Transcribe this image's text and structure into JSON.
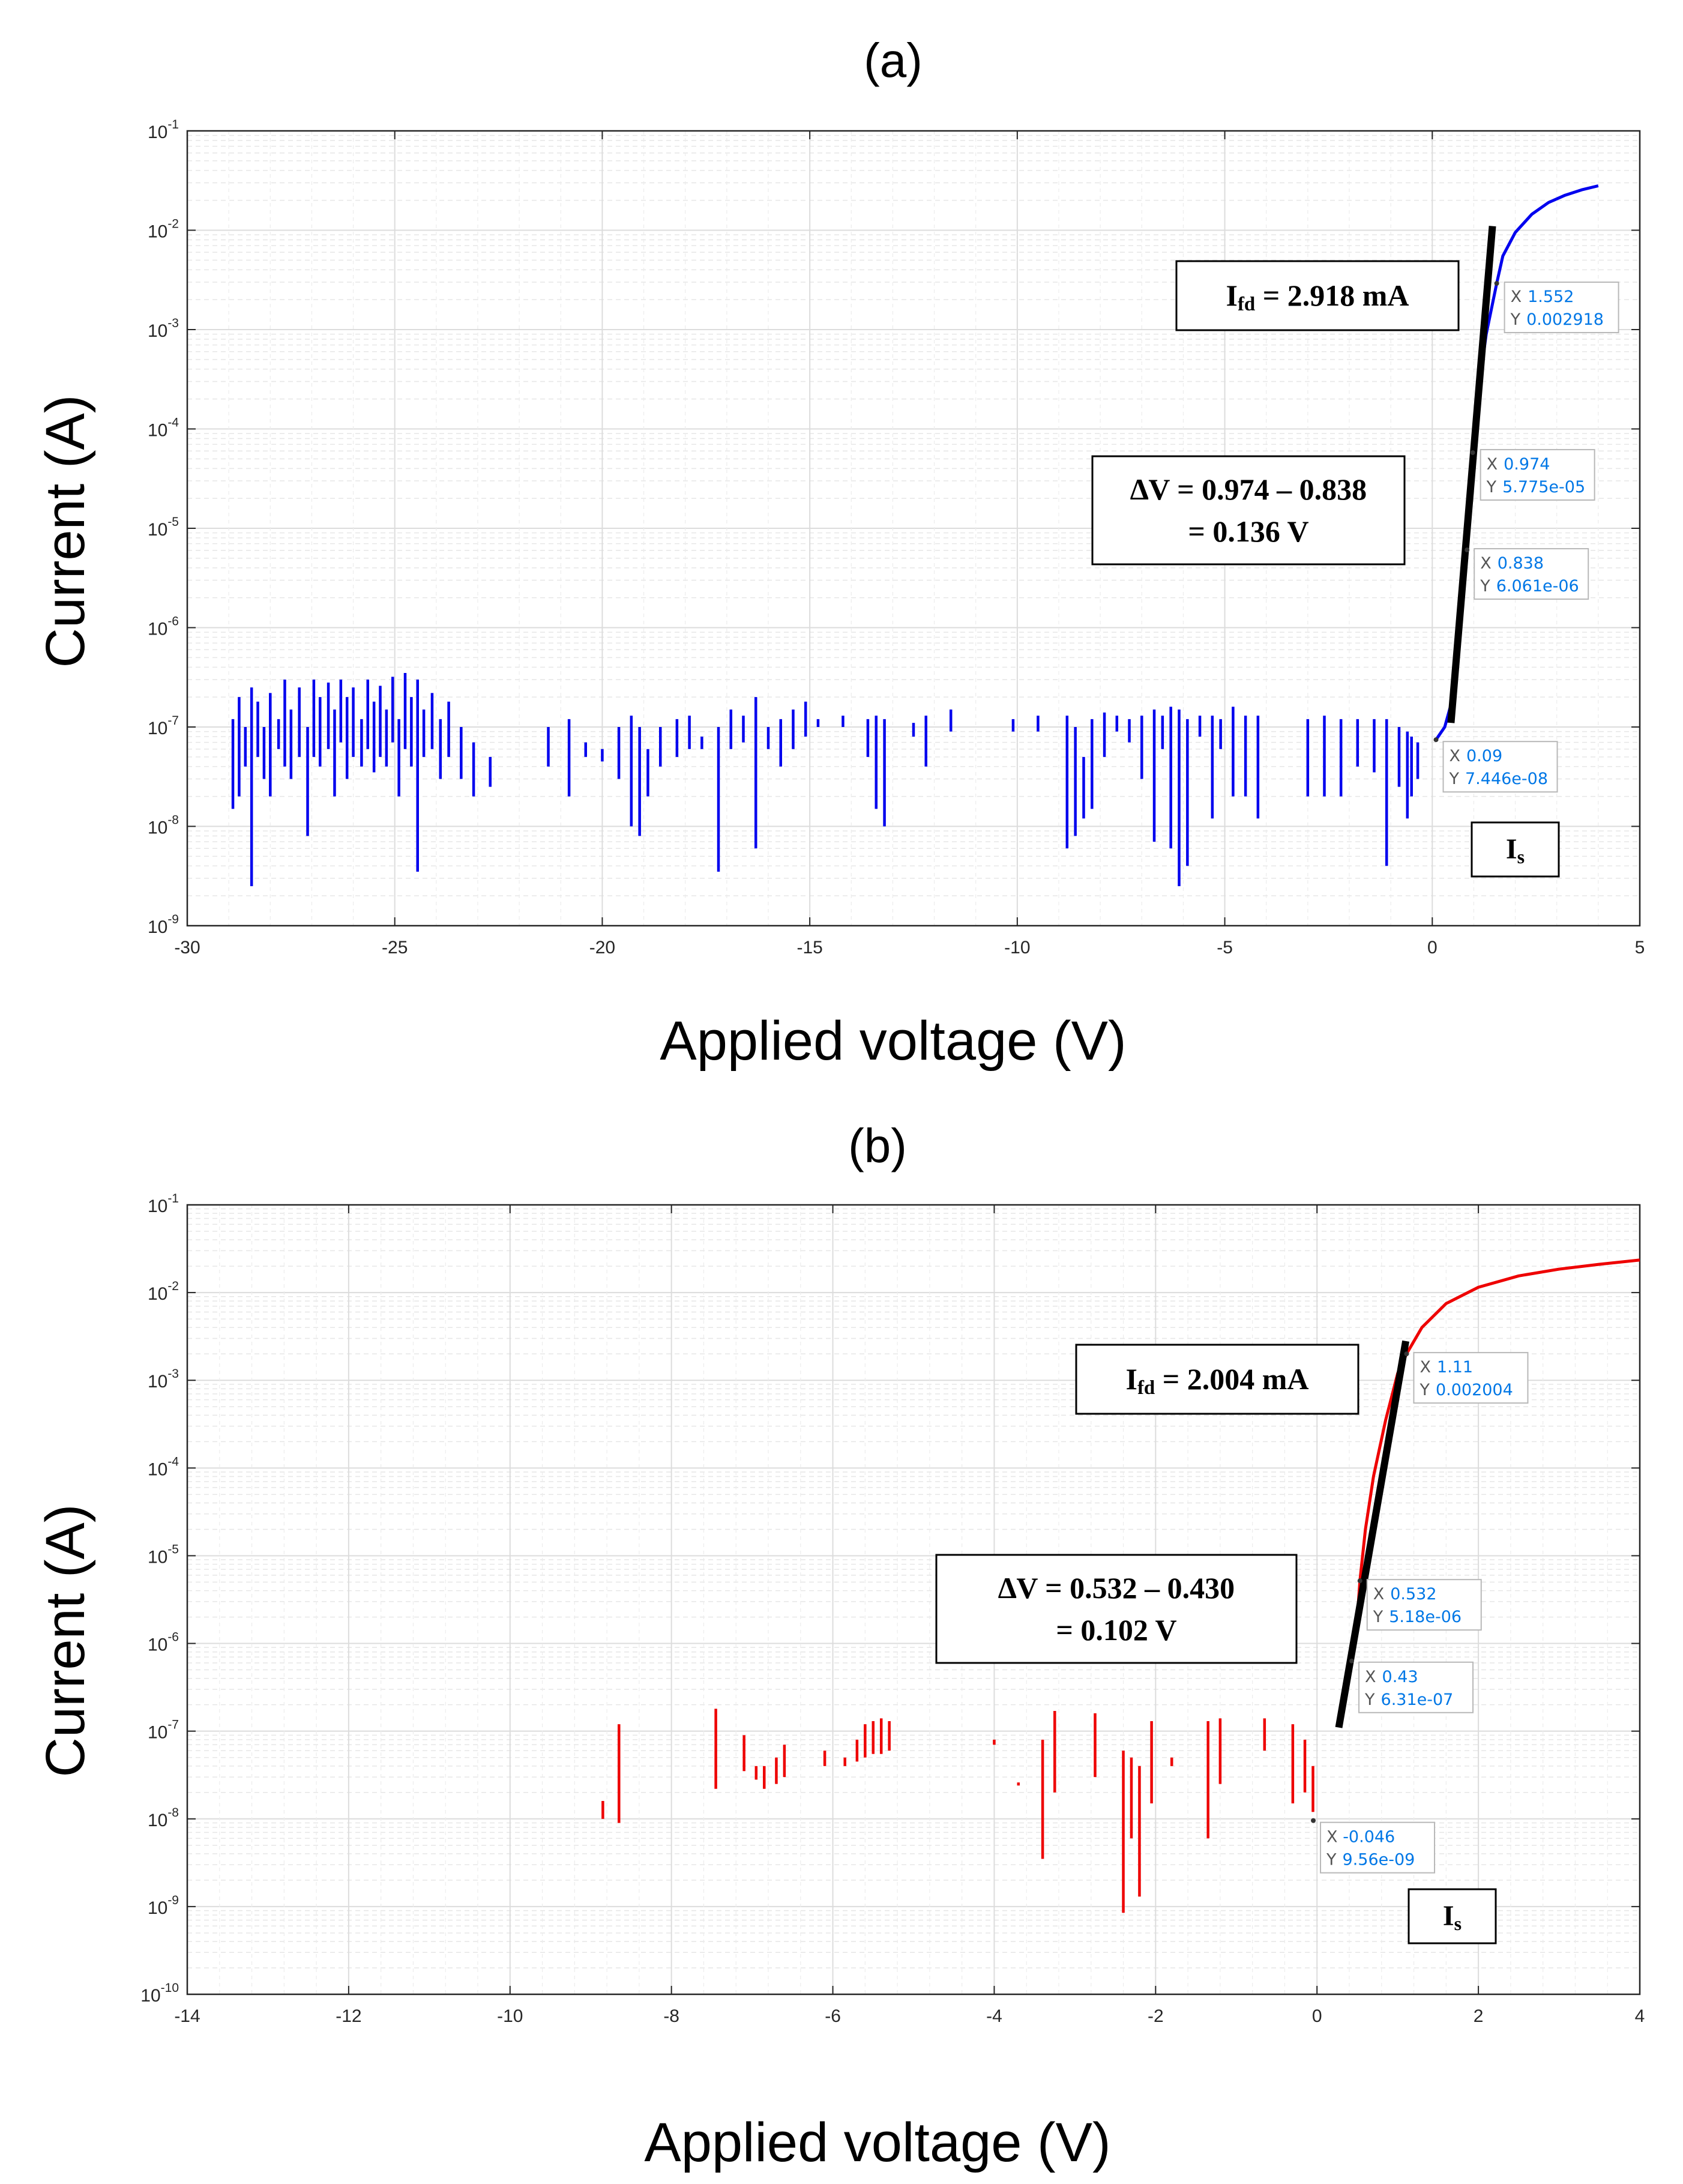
{
  "chart_data": [
    {
      "type": "line",
      "panel_label": "(a)",
      "xlabel": "Applied voltage (V)",
      "ylabel": "Current (A)",
      "xlim": [
        -30,
        5
      ],
      "ylim_exponent": [
        -9,
        -1
      ],
      "yscale": "log",
      "x_ticks": [
        -30,
        -25,
        -20,
        -15,
        -10,
        -5,
        0,
        5
      ],
      "y_tick_exponents": [
        -9,
        -8,
        -7,
        -6,
        -5,
        -4,
        -3,
        -2,
        -1
      ],
      "grid": true,
      "color": "#0000ee",
      "series": [
        {
          "name": "forward",
          "x": [
            0.09,
            0.3,
            0.5,
            0.65,
            0.8,
            0.838,
            0.9,
            0.974,
            1.1,
            1.3,
            1.552,
            1.7,
            2.0,
            2.4,
            2.8,
            3.2,
            3.6,
            4.0
          ],
          "y": [
            7.446e-08,
            1e-07,
            2e-07,
            8e-07,
            4e-06,
            6.061e-06,
            1.6e-05,
            5.775e-05,
            0.00022,
            0.0009,
            0.002918,
            0.0055,
            0.0095,
            0.0145,
            0.019,
            0.0225,
            0.0255,
            0.028
          ]
        }
      ],
      "noise_segments": [
        [
          -28.9,
          1.2e-07,
          1.5e-08
        ],
        [
          -28.75,
          2e-07,
          2e-08
        ],
        [
          -28.6,
          1e-07,
          4e-08
        ],
        [
          -28.45,
          2.5e-07,
          2.5e-09
        ],
        [
          -28.3,
          1.8e-07,
          5e-08
        ],
        [
          -28.15,
          1e-07,
          3e-08
        ],
        [
          -28.0,
          2.2e-07,
          2e-08
        ],
        [
          -27.8,
          1.2e-07,
          6e-08
        ],
        [
          -27.65,
          3e-07,
          4e-08
        ],
        [
          -27.5,
          1.5e-07,
          3e-08
        ],
        [
          -27.3,
          2.5e-07,
          5e-08
        ],
        [
          -27.1,
          1e-07,
          8e-09
        ],
        [
          -26.95,
          3e-07,
          5e-08
        ],
        [
          -26.8,
          2e-07,
          4e-08
        ],
        [
          -26.6,
          2.8e-07,
          6e-08
        ],
        [
          -26.45,
          1.5e-07,
          2e-08
        ],
        [
          -26.3,
          3e-07,
          7e-08
        ],
        [
          -26.15,
          2e-07,
          3e-08
        ],
        [
          -26.0,
          2.5e-07,
          5e-08
        ],
        [
          -25.8,
          1.2e-07,
          4e-08
        ],
        [
          -25.65,
          3e-07,
          6e-08
        ],
        [
          -25.5,
          1.8e-07,
          3.5e-08
        ],
        [
          -25.35,
          2.6e-07,
          5e-08
        ],
        [
          -25.2,
          1.5e-07,
          4e-08
        ],
        [
          -25.05,
          3.2e-07,
          7e-08
        ],
        [
          -24.9,
          1.2e-07,
          2e-08
        ],
        [
          -24.75,
          3.5e-07,
          6e-08
        ],
        [
          -24.6,
          2e-07,
          4e-08
        ],
        [
          -24.45,
          3e-07,
          3.5e-09
        ],
        [
          -24.3,
          1.5e-07,
          5e-08
        ],
        [
          -24.1,
          2.2e-07,
          6e-08
        ],
        [
          -23.9,
          1.2e-07,
          3e-08
        ],
        [
          -23.7,
          1.8e-07,
          5e-08
        ],
        [
          -23.4,
          1e-07,
          3e-08
        ],
        [
          -23.1,
          7e-08,
          2e-08
        ],
        [
          -22.7,
          5e-08,
          2.5e-08
        ],
        [
          -21.3,
          1e-07,
          4e-08
        ],
        [
          -20.8,
          1.2e-07,
          2e-08
        ],
        [
          -20.4,
          7e-08,
          5e-08
        ],
        [
          -20.0,
          6e-08,
          4.5e-08
        ],
        [
          -19.6,
          1e-07,
          3e-08
        ],
        [
          -19.3,
          1.3e-07,
          1e-08
        ],
        [
          -19.1,
          1e-07,
          8e-09
        ],
        [
          -18.9,
          6e-08,
          2e-08
        ],
        [
          -18.6,
          1e-07,
          4e-08
        ],
        [
          -18.2,
          1.2e-07,
          5e-08
        ],
        [
          -17.9,
          1.3e-07,
          6e-08
        ],
        [
          -17.6,
          8e-08,
          6e-08
        ],
        [
          -17.2,
          1e-07,
          3.5e-09
        ],
        [
          -16.9,
          1.5e-07,
          6e-08
        ],
        [
          -16.6,
          1.3e-07,
          7e-08
        ],
        [
          -16.3,
          2e-07,
          6e-09
        ],
        [
          -16.0,
          1e-07,
          6e-08
        ],
        [
          -15.7,
          1.2e-07,
          4e-08
        ],
        [
          -15.4,
          1.5e-07,
          6e-08
        ],
        [
          -15.1,
          1.8e-07,
          8e-08
        ],
        [
          -14.8,
          1.2e-07,
          1e-07
        ],
        [
          -14.2,
          1.3e-07,
          1e-07
        ],
        [
          -13.6,
          1.2e-07,
          5e-08
        ],
        [
          -13.4,
          1.3e-07,
          1.5e-08
        ],
        [
          -13.2,
          1.2e-07,
          1e-08
        ],
        [
          -12.5,
          1.1e-07,
          8e-08
        ],
        [
          -12.2,
          1.3e-07,
          4e-08
        ],
        [
          -11.6,
          1.5e-07,
          9e-08
        ],
        [
          -10.1,
          1.2e-07,
          9e-08
        ],
        [
          -9.5,
          1.3e-07,
          9e-08
        ],
        [
          -8.8,
          1.3e-07,
          6e-09
        ],
        [
          -8.6,
          1e-07,
          8e-09
        ],
        [
          -8.4,
          5e-08,
          1.2e-08
        ],
        [
          -8.2,
          1.2e-07,
          1.5e-08
        ],
        [
          -7.9,
          1.4e-07,
          5e-08
        ],
        [
          -7.6,
          1.3e-07,
          9e-08
        ],
        [
          -7.3,
          1.2e-07,
          7e-08
        ],
        [
          -7.0,
          1.3e-07,
          3e-08
        ],
        [
          -6.7,
          1.5e-07,
          7e-09
        ],
        [
          -6.5,
          1.3e-07,
          6e-08
        ],
        [
          -6.3,
          1.6e-07,
          6e-09
        ],
        [
          -6.1,
          1.5e-07,
          2.5e-09
        ],
        [
          -5.9,
          1.2e-07,
          4e-09
        ],
        [
          -5.6,
          1.3e-07,
          8e-08
        ],
        [
          -5.3,
          1.3e-07,
          1.2e-08
        ],
        [
          -5.1,
          1.2e-07,
          6e-08
        ],
        [
          -4.8,
          1.6e-07,
          2e-08
        ],
        [
          -4.5,
          1.3e-07,
          2e-08
        ],
        [
          -4.2,
          1.3e-07,
          1.2e-08
        ],
        [
          -3.0,
          1.2e-07,
          2e-08
        ],
        [
          -2.6,
          1.3e-07,
          2e-08
        ],
        [
          -2.2,
          1.2e-07,
          2e-08
        ],
        [
          -1.8,
          1.2e-07,
          4e-08
        ],
        [
          -1.4,
          1.2e-07,
          3.5e-08
        ],
        [
          -1.1,
          1.2e-07,
          4e-09
        ],
        [
          -0.8,
          1e-07,
          2.5e-08
        ],
        [
          -0.6,
          9e-08,
          1.2e-08
        ],
        [
          -0.5,
          8e-08,
          2e-08
        ],
        [
          -0.35,
          7e-08,
          3e-08
        ]
      ],
      "fit_line": {
        "x": [
          0.45,
          1.45
        ],
        "y": [
          1.1e-07,
          0.011
        ]
      },
      "data_tips": [
        {
          "x_text": "1.552",
          "y_text": "0.002918",
          "x": 1.552,
          "y": 0.002918
        },
        {
          "x_text": "0.974",
          "y_text": "5.775e-05",
          "x": 0.974,
          "y": 5.775e-05
        },
        {
          "x_text": "0.838",
          "y_text": "6.061e-06",
          "x": 0.838,
          "y": 6.061e-06
        },
        {
          "x_text": "0.09",
          "y_text": "7.446e-08",
          "x": 0.09,
          "y": 7.446e-08
        }
      ],
      "annotations": {
        "ifd_main": "I",
        "ifd_sub": "fd",
        "ifd_value": " = 2.918 mA",
        "dv_line1": "∆V = 0.974 – 0.838",
        "dv_line2": "= 0.136 V",
        "is_main": "I",
        "is_sub": "s"
      }
    },
    {
      "type": "line",
      "panel_label": "(b)",
      "xlabel": "Applied voltage (V)",
      "ylabel": "Current (A)",
      "xlim": [
        -14,
        4
      ],
      "ylim_exponent": [
        -10,
        -1
      ],
      "yscale": "log",
      "x_ticks": [
        -14,
        -12,
        -10,
        -8,
        -6,
        -4,
        -2,
        0,
        2,
        4
      ],
      "y_tick_exponents": [
        -10,
        -9,
        -8,
        -7,
        -6,
        -5,
        -4,
        -3,
        -2,
        -1
      ],
      "grid": true,
      "color": "#ee0000",
      "series": [
        {
          "name": "forward",
          "x": [
            0.3,
            0.43,
            0.5,
            0.532,
            0.6,
            0.7,
            0.85,
            1.0,
            1.11,
            1.3,
            1.6,
            2.0,
            2.5,
            3.0,
            3.5,
            4.0
          ],
          "y": [
            1.5e-07,
            6.31e-07,
            2e-06,
            5.18e-06,
            2e-05,
            8e-05,
            0.00035,
            0.0012,
            0.002004,
            0.004,
            0.0075,
            0.0115,
            0.0155,
            0.0185,
            0.021,
            0.0235
          ]
        }
      ],
      "noise_segments": [
        [
          -8.85,
          1.6e-08,
          1e-08
        ],
        [
          -8.65,
          1.2e-07,
          9e-09
        ],
        [
          -7.45,
          1.8e-07,
          2.2e-08
        ],
        [
          -7.1,
          9e-08,
          3.5e-08
        ],
        [
          -6.95,
          4e-08,
          2.8e-08
        ],
        [
          -6.85,
          4e-08,
          2.2e-08
        ],
        [
          -6.7,
          5e-08,
          2.5e-08
        ],
        [
          -6.6,
          7e-08,
          3e-08
        ],
        [
          -6.1,
          6e-08,
          4e-08
        ],
        [
          -5.85,
          5e-08,
          4e-08
        ],
        [
          -5.7,
          8e-08,
          4.5e-08
        ],
        [
          -5.6,
          1.2e-07,
          5e-08
        ],
        [
          -5.5,
          1.3e-07,
          5.5e-08
        ],
        [
          -5.4,
          1.4e-07,
          5.5e-08
        ],
        [
          -5.3,
          1.3e-07,
          6e-08
        ],
        [
          -4.0,
          8e-08,
          7e-08
        ],
        [
          -3.7,
          2.6e-08,
          2.4e-08
        ],
        [
          -3.4,
          8e-08,
          3.5e-09
        ],
        [
          -3.25,
          1.7e-07,
          2e-08
        ],
        [
          -2.75,
          1.6e-07,
          3e-08
        ],
        [
          -2.4,
          6e-08,
          8.5e-10
        ],
        [
          -2.3,
          5e-08,
          6e-09
        ],
        [
          -2.2,
          4e-08,
          1.3e-09
        ],
        [
          -2.05,
          1.3e-07,
          1.5e-08
        ],
        [
          -1.8,
          5e-08,
          4e-08
        ],
        [
          -1.35,
          1.3e-07,
          6e-09
        ],
        [
          -1.2,
          1.4e-07,
          2.5e-08
        ],
        [
          -0.65,
          1.4e-07,
          6e-08
        ],
        [
          -0.3,
          1.2e-07,
          1.5e-08
        ],
        [
          -0.15,
          8e-08,
          2e-08
        ],
        [
          -0.05,
          4e-08,
          1.2e-08
        ]
      ],
      "fit_line": {
        "x": [
          0.27,
          1.1
        ],
        "y": [
          1.1e-07,
          0.0028
        ]
      },
      "data_tips": [
        {
          "x_text": "1.11",
          "y_text": "0.002004",
          "x": 1.11,
          "y": 0.002004
        },
        {
          "x_text": "0.532",
          "y_text": "5.18e-06",
          "x": 0.532,
          "y": 5.18e-06
        },
        {
          "x_text": "0.43",
          "y_text": "6.31e-07",
          "x": 0.43,
          "y": 6.31e-07
        },
        {
          "x_text": "-0.046",
          "y_text": "9.56e-09",
          "x": -0.046,
          "y": 9.56e-09
        }
      ],
      "annotations": {
        "ifd_main": "I",
        "ifd_sub": "fd",
        "ifd_value": " = 2.004 mA",
        "dv_line1": "∆V = 0.532 – 0.430",
        "dv_line2": "= 0.102 V",
        "is_main": "I",
        "is_sub": "s"
      }
    }
  ],
  "labels": {
    "tip_x_key": "X",
    "tip_y_key": "Y",
    "tick_base": "10"
  },
  "colors": {
    "tip_value": "#0077e6",
    "tip_key": "#555555",
    "fit_line": "#000000"
  }
}
